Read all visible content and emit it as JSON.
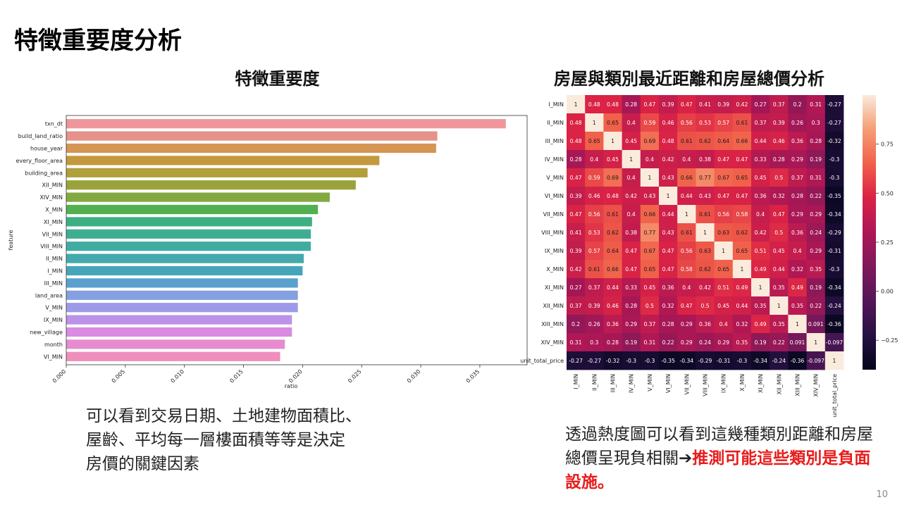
{
  "slide": {
    "title": "特徵重要度分析",
    "page_number": "10"
  },
  "left_panel": {
    "heading": "特徵重要度",
    "caption_lines": [
      "可以看到交易日期、土地建物面積比、",
      "屋齡、平均每一層樓面積等等是決定",
      "房價的關鍵因素"
    ]
  },
  "right_panel": {
    "heading": "房屋與類別最近距離和房屋總價分析",
    "caption_normal": "透過熱度圖可以看到這幾種類別距離和房屋總價呈現負相關➔",
    "caption_highlight": "推測可能這些類別是負面設施。"
  },
  "chart_data": [
    {
      "type": "bar",
      "orientation": "horizontal",
      "xlabel": "ratio",
      "ylabel": "feature",
      "xlim": [
        0,
        0.039
      ],
      "x_ticks": [
        "0.000",
        "0.005",
        "0.010",
        "0.015",
        "0.020",
        "0.025",
        "0.030",
        "0.035"
      ],
      "x_tick_values": [
        0,
        0.005,
        0.01,
        0.015,
        0.02,
        0.025,
        0.03,
        0.035
      ],
      "categories": [
        "txn_dt",
        "build_land_ratio",
        "house_year",
        "every_floor_area",
        "building_area",
        "XII_MIN",
        "XIV_MIN",
        "X_MIN",
        "XI_MIN",
        "VII_MIN",
        "VIII_MIN",
        "II_MIN",
        "I_MIN",
        "III_MIN",
        "land_area",
        "V_MIN",
        "IX_MIN",
        "new_village",
        "month",
        "VI_MIN"
      ],
      "values": [
        0.0372,
        0.0314,
        0.0313,
        0.0265,
        0.0255,
        0.0245,
        0.0223,
        0.0213,
        0.0208,
        0.0207,
        0.0207,
        0.0201,
        0.02,
        0.0196,
        0.0196,
        0.0196,
        0.0191,
        0.0191,
        0.0185,
        0.0181
      ],
      "colors": [
        "#ee969c",
        "#e6918a",
        "#d59553",
        "#c4993d",
        "#b09f3a",
        "#9aa33b",
        "#83a840",
        "#51b04f",
        "#3daf83",
        "#3eae92",
        "#40aca1",
        "#43a9ad",
        "#46a5bb",
        "#5aa0cf",
        "#83a0e0",
        "#9c9ae8",
        "#bb92e8",
        "#da8ae2",
        "#e78bd0",
        "#ee8fbd"
      ]
    },
    {
      "type": "heatmap",
      "labels": [
        "I_MIN",
        "II_MIN",
        "III_MIN",
        "IV_MIN",
        "V_MIN",
        "VI_MIN",
        "VII_MIN",
        "VIII_MIN",
        "IX_MIN",
        "X_MIN",
        "XI_MIN",
        "XII_MIN",
        "XIII_MIN",
        "XIV_MIN",
        "unit_total_price"
      ],
      "matrix": [
        [
          "1",
          "0.48",
          "0.48",
          "0.28",
          "0.47",
          "0.39",
          "0.47",
          "0.41",
          "0.39",
          "0.42",
          "0.27",
          "0.37",
          "0.2",
          "0.31",
          "-0.27"
        ],
        [
          "0.48",
          "1",
          "0.65",
          "0.4",
          "0.59",
          "0.46",
          "0.56",
          "0.53",
          "0.57",
          "0.61",
          "0.37",
          "0.39",
          "0.26",
          "0.3",
          "-0.27"
        ],
        [
          "0.48",
          "0.65",
          "1",
          "0.45",
          "0.69",
          "0.48",
          "0.61",
          "0.62",
          "0.64",
          "0.66",
          "0.44",
          "0.46",
          "0.36",
          "0.28",
          "-0.32"
        ],
        [
          "0.28",
          "0.4",
          "0.45",
          "1",
          "0.4",
          "0.42",
          "0.4",
          "0.38",
          "0.47",
          "0.47",
          "0.33",
          "0.28",
          "0.29",
          "0.19",
          "-0.3"
        ],
        [
          "0.47",
          "0.59",
          "0.69",
          "0.4",
          "1",
          "0.43",
          "0.66",
          "0.77",
          "0.67",
          "0.65",
          "0.45",
          "0.5",
          "0.37",
          "0.31",
          "-0.3"
        ],
        [
          "0.39",
          "0.46",
          "0.48",
          "0.42",
          "0.43",
          "1",
          "0.44",
          "0.43",
          "0.47",
          "0.47",
          "0.36",
          "0.32",
          "0.28",
          "0.22",
          "-0.35"
        ],
        [
          "0.47",
          "0.56",
          "0.61",
          "0.4",
          "0.66",
          "0.44",
          "1",
          "0.61",
          "0.56",
          "0.58",
          "0.4",
          "0.47",
          "0.29",
          "0.29",
          "-0.34"
        ],
        [
          "0.41",
          "0.53",
          "0.62",
          "0.38",
          "0.77",
          "0.43",
          "0.61",
          "1",
          "0.63",
          "0.62",
          "0.42",
          "0.5",
          "0.36",
          "0.24",
          "-0.29"
        ],
        [
          "0.39",
          "0.57",
          "0.64",
          "0.47",
          "0.67",
          "0.47",
          "0.56",
          "0.63",
          "1",
          "0.65",
          "0.51",
          "0.45",
          "0.4",
          "0.29",
          "-0.31"
        ],
        [
          "0.42",
          "0.61",
          "0.66",
          "0.47",
          "0.65",
          "0.47",
          "0.58",
          "0.62",
          "0.65",
          "1",
          "0.49",
          "0.44",
          "0.32",
          "0.35",
          "-0.3"
        ],
        [
          "0.27",
          "0.37",
          "0.44",
          "0.33",
          "0.45",
          "0.36",
          "0.4",
          "0.42",
          "0.51",
          "0.49",
          "1",
          "0.35",
          "0.49",
          "0.19",
          "-0.34"
        ],
        [
          "0.37",
          "0.39",
          "0.46",
          "0.28",
          "0.5",
          "0.32",
          "0.47",
          "0.5",
          "0.45",
          "0.44",
          "0.35",
          "1",
          "0.35",
          "0.22",
          "-0.24"
        ],
        [
          "0.2",
          "0.26",
          "0.36",
          "0.29",
          "0.37",
          "0.28",
          "0.29",
          "0.36",
          "0.4",
          "0.32",
          "0.49",
          "0.35",
          "1",
          "0.091",
          "-0.36"
        ],
        [
          "0.31",
          "0.3",
          "0.28",
          "0.19",
          "0.31",
          "0.22",
          "0.29",
          "0.24",
          "0.29",
          "0.35",
          "0.19",
          "0.22",
          "0.091",
          "1",
          "-0.097"
        ],
        [
          "-0.27",
          "-0.27",
          "-0.32",
          "-0.3",
          "-0.3",
          "-0.35",
          "-0.34",
          "-0.29",
          "-0.31",
          "-0.3",
          "-0.34",
          "-0.24",
          "-0.36",
          "-0.097",
          "1"
        ]
      ],
      "vmin": -0.4,
      "vmax": 1.0,
      "colorbar_ticks": [
        "0.75",
        "0.50",
        "0.25",
        "0.00",
        "−0.25"
      ],
      "colorbar_tick_values": [
        0.75,
        0.5,
        0.25,
        0.0,
        -0.25
      ]
    }
  ]
}
